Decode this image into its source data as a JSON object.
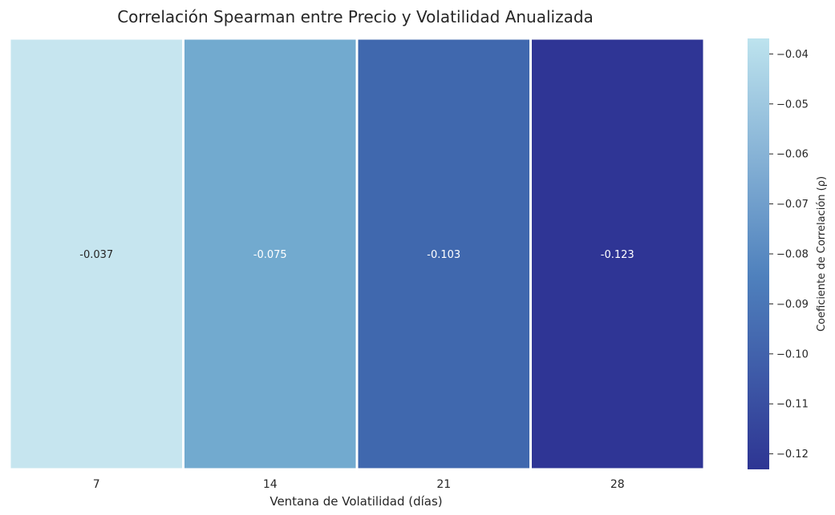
{
  "chart_data": {
    "type": "heatmap",
    "title": "Correlación Spearman entre Precio y Volatilidad Anualizada",
    "xlabel": "Ventana de Volatilidad (días)",
    "ylabel": "",
    "categories": [
      "7",
      "14",
      "21",
      "28"
    ],
    "values": [
      -0.037,
      -0.075,
      -0.103,
      -0.123
    ],
    "annotations": [
      "-0.037",
      "-0.075",
      "-0.103",
      "-0.123"
    ],
    "cell_colors": [
      "#c6e5ef",
      "#72aacf",
      "#4068ae",
      "#2f3595"
    ],
    "annotation_colors": [
      "#262626",
      "#ffffff",
      "#ffffff",
      "#ffffff"
    ],
    "colorbar": {
      "label": "Coeficiente de Correlación (ρ)",
      "range": [
        -0.1231,
        -0.0369
      ],
      "ticks": [
        -0.04,
        -0.05,
        -0.06,
        -0.07,
        -0.08,
        -0.09,
        -0.1,
        -0.11,
        -0.12
      ],
      "tick_labels": [
        "−0.04",
        "−0.05",
        "−0.06",
        "−0.07",
        "−0.08",
        "−0.09",
        "−0.10",
        "−0.11",
        "−0.12"
      ],
      "color_top": "#bde3ee",
      "color_mid": "#4f81bd",
      "color_bottom": "#2e3593"
    },
    "grid": false,
    "legend": "colorbar-right"
  }
}
